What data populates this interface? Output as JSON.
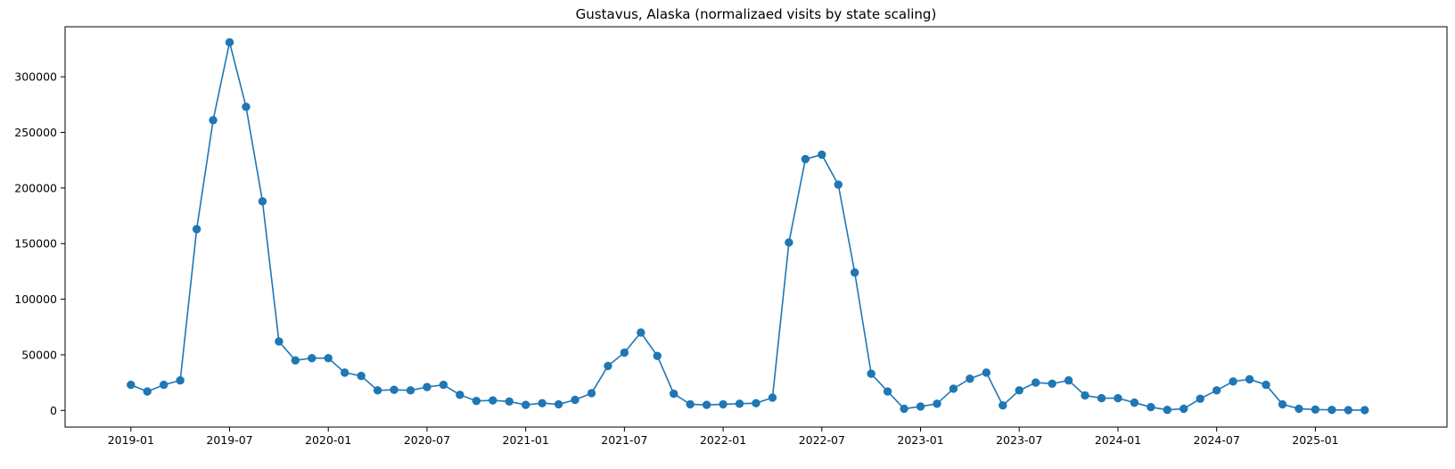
{
  "chart_data": {
    "type": "line",
    "title": "Gustavus, Alaska (normalizaed visits by state scaling)",
    "xlabel": "",
    "ylabel": "",
    "color": "#1f77b4",
    "markers": true,
    "grid": false,
    "legend": "none",
    "x_start": "2019-01",
    "x": [
      "2019-01",
      "2019-02",
      "2019-03",
      "2019-04",
      "2019-05",
      "2019-06",
      "2019-07",
      "2019-08",
      "2019-09",
      "2019-10",
      "2019-11",
      "2019-12",
      "2020-01",
      "2020-02",
      "2020-03",
      "2020-04",
      "2020-05",
      "2020-06",
      "2020-07",
      "2020-08",
      "2020-09",
      "2020-10",
      "2020-11",
      "2020-12",
      "2021-01",
      "2021-02",
      "2021-03",
      "2021-04",
      "2021-05",
      "2021-06",
      "2021-07",
      "2021-08",
      "2021-09",
      "2021-10",
      "2021-11",
      "2021-12",
      "2022-01",
      "2022-02",
      "2022-03",
      "2022-04",
      "2022-05",
      "2022-06",
      "2022-07",
      "2022-08",
      "2022-09",
      "2022-10",
      "2022-11",
      "2022-12",
      "2023-01",
      "2023-02",
      "2023-03",
      "2023-04",
      "2023-05",
      "2023-06",
      "2023-07",
      "2023-08",
      "2023-09",
      "2023-10",
      "2023-11",
      "2023-12",
      "2024-01",
      "2024-02",
      "2024-03",
      "2024-04",
      "2024-05",
      "2024-06",
      "2024-07",
      "2024-08",
      "2024-09",
      "2024-10",
      "2024-11",
      "2024-12",
      "2025-01",
      "2025-02",
      "2025-03",
      "2025-04"
    ],
    "y": [
      23000,
      17000,
      23000,
      27000,
      163000,
      261000,
      331000,
      273000,
      188000,
      62000,
      45000,
      47000,
      47000,
      34000,
      31000,
      18000,
      18500,
      18000,
      21000,
      23000,
      14000,
      8500,
      9000,
      8000,
      5000,
      6500,
      5500,
      9500,
      15500,
      40000,
      52000,
      70000,
      49000,
      15000,
      5500,
      5000,
      5500,
      6000,
      6500,
      11500,
      151000,
      226000,
      230000,
      203000,
      124000,
      33000,
      17000,
      1500,
      3500,
      6000,
      19500,
      28500,
      34000,
      4500,
      18000,
      25000,
      24000,
      27000,
      13500,
      11000,
      11000,
      7000,
      3000,
      500,
      1500,
      10500,
      18000,
      26000,
      28000,
      23000,
      5500,
      1500,
      800,
      500,
      300,
      300
    ],
    "xlim": [
      "2018-09",
      "2025-09"
    ],
    "ylim": [
      -15000,
      345000
    ],
    "x_ticks": [
      "2019-01",
      "2019-07",
      "2020-01",
      "2020-07",
      "2021-01",
      "2021-07",
      "2022-01",
      "2022-07",
      "2023-01",
      "2023-07",
      "2024-01",
      "2024-07",
      "2025-01"
    ],
    "y_ticks": [
      0,
      50000,
      100000,
      150000,
      200000,
      250000,
      300000
    ]
  }
}
